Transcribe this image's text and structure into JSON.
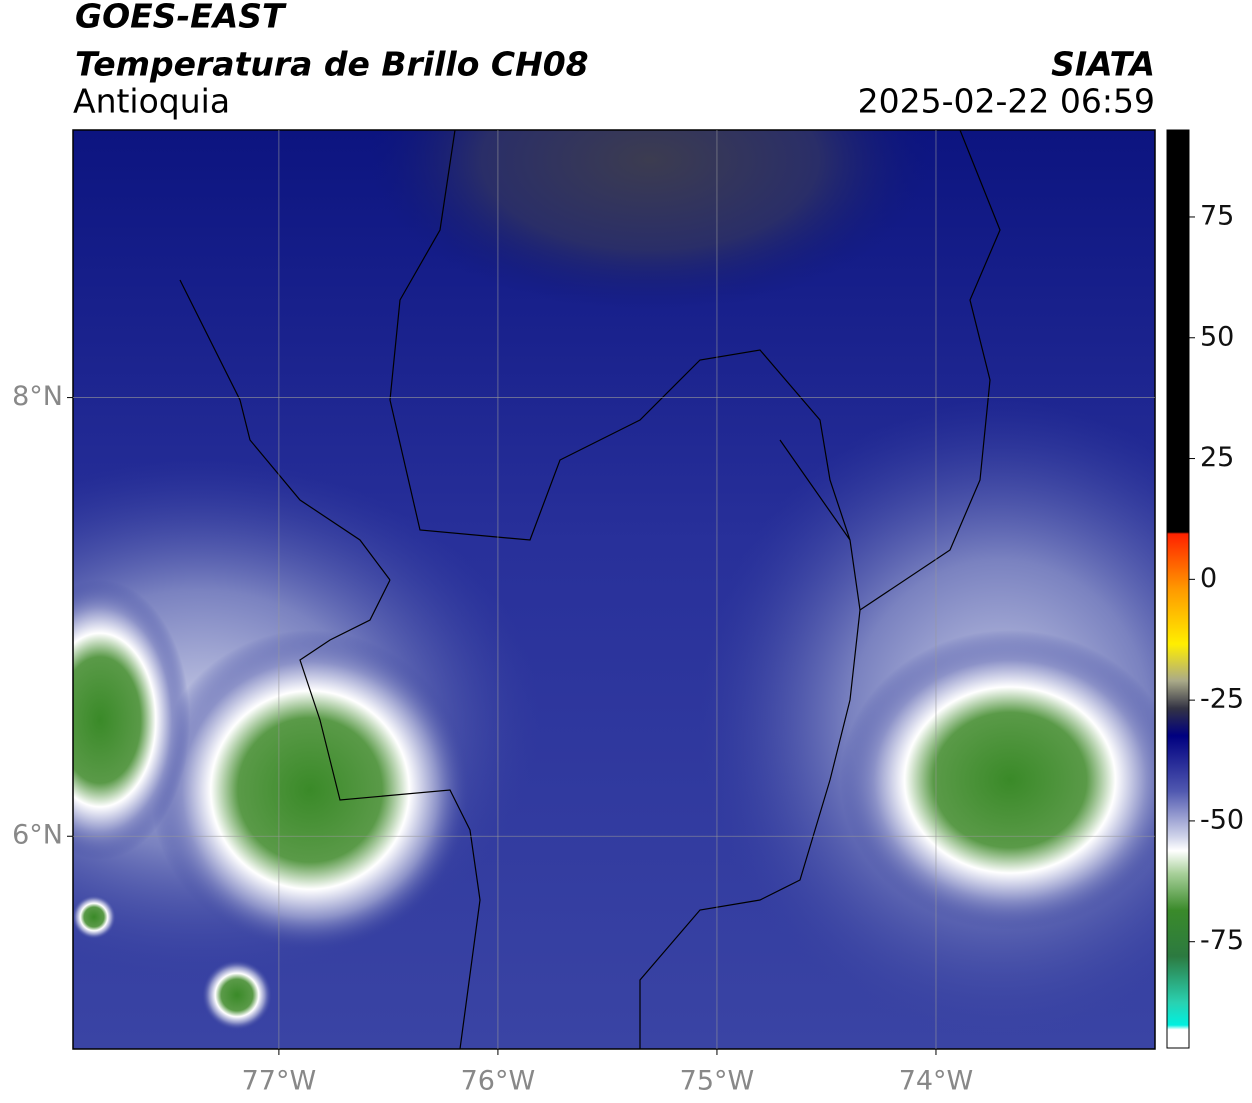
{
  "header": {
    "title": "GOES-EAST",
    "subtitle": "Temperatura de Brillo CH08",
    "region": "Antioquia",
    "source": "SIATA",
    "datetime": "2025-02-22 06:59"
  },
  "map": {
    "xlim": [
      -77.94,
      -73.0
    ],
    "ylim": [
      5.03,
      9.22
    ],
    "xticks": [
      {
        "value": -77,
        "label": "77°W"
      },
      {
        "value": -76,
        "label": "76°W"
      },
      {
        "value": -75,
        "label": "75°W"
      },
      {
        "value": -74,
        "label": "74°W"
      }
    ],
    "yticks": [
      {
        "value": 8,
        "label": "8°N"
      },
      {
        "value": 6,
        "label": "6°N"
      }
    ]
  },
  "colorbar": {
    "lim": [
      -97,
      93
    ],
    "ticks": [
      75,
      50,
      25,
      0,
      -25,
      -50,
      -75
    ]
  }
}
